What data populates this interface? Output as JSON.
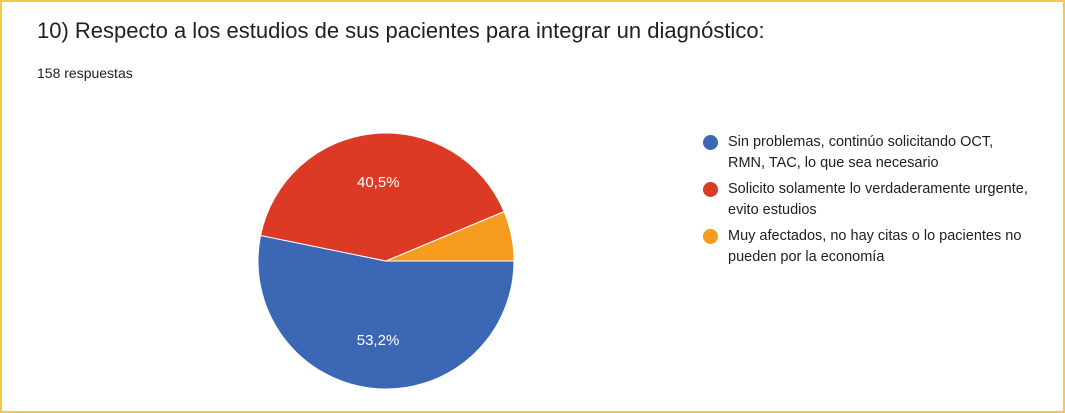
{
  "question": {
    "title": "10) Respecto a los estudios de sus pacientes para integrar un diagnóstico:",
    "response_count": "158 respuestas"
  },
  "colors": {
    "frame": "#f2c94c",
    "series": [
      "#3c67b4",
      "#dc3a25",
      "#f59b1e"
    ]
  },
  "chart_data": {
    "type": "pie",
    "slices": [
      {
        "label": "Sin problemas, continúo solicitando OCT, RMN, TAC, lo que sea necesario",
        "value": 53.2,
        "display": "53,2%"
      },
      {
        "label": "Solicito solamente lo verdaderamente urgente, evito estudios",
        "value": 40.5,
        "display": "40,5%"
      },
      {
        "label": "Muy afectados, no hay citas o lo pacientes no pueden por la economía",
        "value": 6.3,
        "display": ""
      }
    ],
    "legend_position": "right"
  }
}
